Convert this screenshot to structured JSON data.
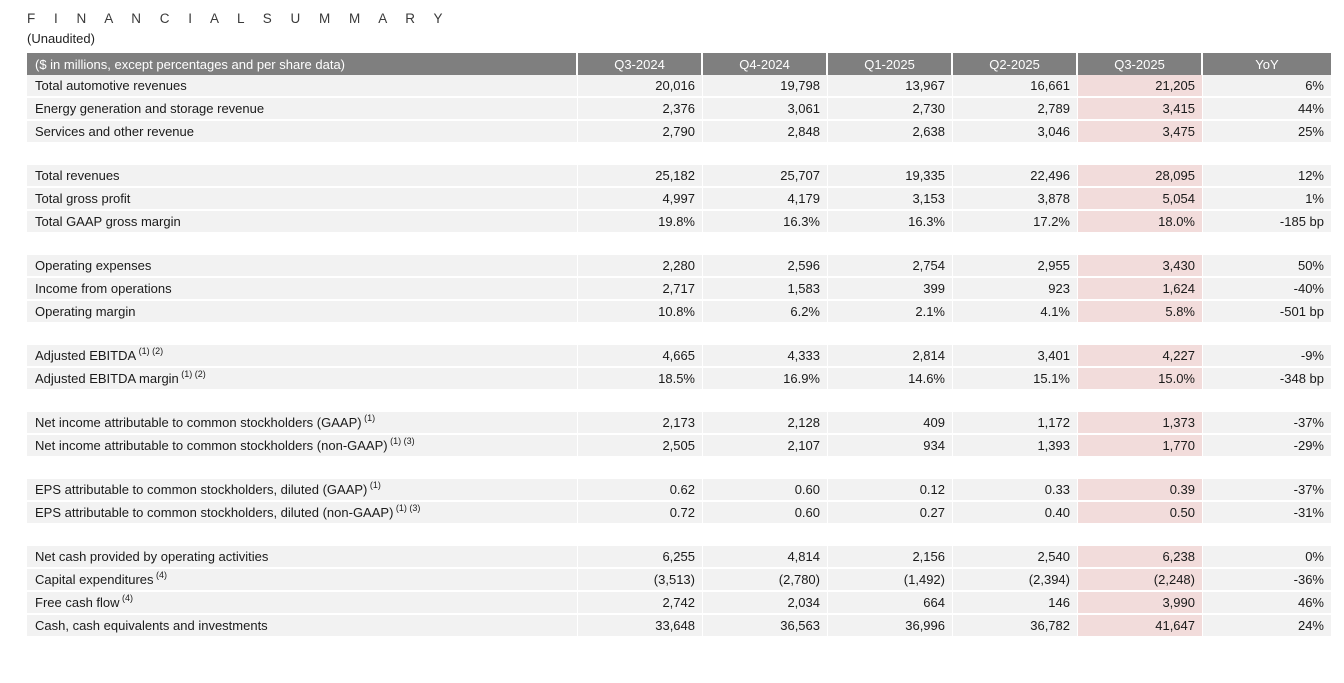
{
  "page": {
    "title": "F I N A N C I A L   S U M M A R Y",
    "subtitle": "(Unaudited)"
  },
  "colors": {
    "header_bg": "#7f7f7f",
    "header_text": "#ffffff",
    "row_bg": "#f2f2f2",
    "highlight_bg": "#f2dcdb",
    "page_bg": "#ffffff"
  },
  "table": {
    "label_header": "($ in millions, except percentages and per share data)",
    "columns": [
      "Q3-2024",
      "Q4-2024",
      "Q1-2025",
      "Q2-2025",
      "Q3-2025",
      "YoY"
    ],
    "highlight_column": "Q3-2025",
    "sections": [
      {
        "rows": [
          {
            "label": "Total automotive revenues",
            "sup": "",
            "values": [
              "20,016",
              "19,798",
              "13,967",
              "16,661",
              "21,205",
              "6%"
            ]
          },
          {
            "label": "Energy generation and storage revenue",
            "sup": "",
            "values": [
              "2,376",
              "3,061",
              "2,730",
              "2,789",
              "3,415",
              "44%"
            ]
          },
          {
            "label": "Services and other revenue",
            "sup": "",
            "values": [
              "2,790",
              "2,848",
              "2,638",
              "3,046",
              "3,475",
              "25%"
            ]
          }
        ]
      },
      {
        "rows": [
          {
            "label": "Total revenues",
            "sup": "",
            "values": [
              "25,182",
              "25,707",
              "19,335",
              "22,496",
              "28,095",
              "12%"
            ]
          },
          {
            "label": "Total gross profit",
            "sup": "",
            "values": [
              "4,997",
              "4,179",
              "3,153",
              "3,878",
              "5,054",
              "1%"
            ]
          },
          {
            "label": "Total GAAP gross margin",
            "sup": "",
            "values": [
              "19.8%",
              "16.3%",
              "16.3%",
              "17.2%",
              "18.0%",
              "-185 bp"
            ]
          }
        ]
      },
      {
        "rows": [
          {
            "label": "Operating expenses",
            "sup": "",
            "values": [
              "2,280",
              "2,596",
              "2,754",
              "2,955",
              "3,430",
              "50%"
            ]
          },
          {
            "label": "Income from operations",
            "sup": "",
            "values": [
              "2,717",
              "1,583",
              "399",
              "923",
              "1,624",
              "-40%"
            ]
          },
          {
            "label": "Operating margin",
            "sup": "",
            "values": [
              "10.8%",
              "6.2%",
              "2.1%",
              "4.1%",
              "5.8%",
              "-501 bp"
            ]
          }
        ]
      },
      {
        "rows": [
          {
            "label": "Adjusted EBITDA",
            "sup": "(1) (2)",
            "values": [
              "4,665",
              "4,333",
              "2,814",
              "3,401",
              "4,227",
              "-9%"
            ]
          },
          {
            "label": "Adjusted EBITDA margin",
            "sup": "(1) (2)",
            "values": [
              "18.5%",
              "16.9%",
              "14.6%",
              "15.1%",
              "15.0%",
              "-348 bp"
            ]
          }
        ]
      },
      {
        "rows": [
          {
            "label": "Net income attributable to common stockholders (GAAP)",
            "sup": "(1)",
            "values": [
              "2,173",
              "2,128",
              "409",
              "1,172",
              "1,373",
              "-37%"
            ]
          },
          {
            "label": "Net income attributable to common stockholders (non-GAAP)",
            "sup": "(1) (3)",
            "values": [
              "2,505",
              "2,107",
              "934",
              "1,393",
              "1,770",
              "-29%"
            ]
          }
        ]
      },
      {
        "rows": [
          {
            "label": "EPS attributable to common stockholders, diluted (GAAP)",
            "sup": "(1)",
            "values": [
              "0.62",
              "0.60",
              "0.12",
              "0.33",
              "0.39",
              "-37%"
            ]
          },
          {
            "label": "EPS attributable to common stockholders, diluted (non-GAAP)",
            "sup": "(1) (3)",
            "values": [
              "0.72",
              "0.60",
              "0.27",
              "0.40",
              "0.50",
              "-31%"
            ]
          }
        ]
      },
      {
        "rows": [
          {
            "label": "Net cash provided by operating activities",
            "sup": "",
            "values": [
              "6,255",
              "4,814",
              "2,156",
              "2,540",
              "6,238",
              "0%"
            ]
          },
          {
            "label": "Capital expenditures",
            "sup": "(4)",
            "values": [
              "(3,513)",
              "(2,780)",
              "(1,492)",
              "(2,394)",
              "(2,248)",
              "-36%"
            ]
          },
          {
            "label": "Free cash flow",
            "sup": "(4)",
            "values": [
              "2,742",
              "2,034",
              "664",
              "146",
              "3,990",
              "46%"
            ]
          },
          {
            "label": "Cash, cash equivalents and investments",
            "sup": "",
            "values": [
              "33,648",
              "36,563",
              "36,996",
              "36,782",
              "41,647",
              "24%"
            ]
          }
        ]
      }
    ]
  }
}
